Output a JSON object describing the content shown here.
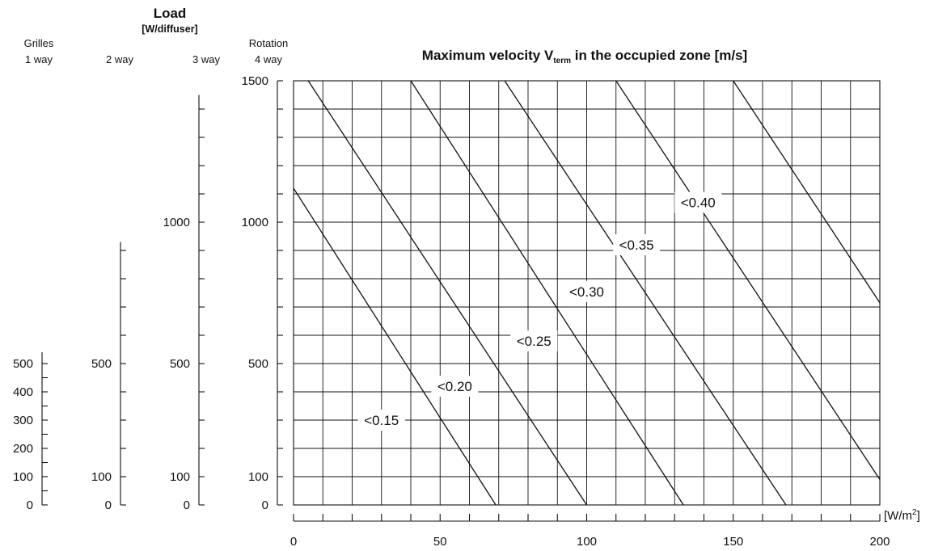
{
  "chart_data": {
    "type": "line",
    "title_prefix": "Maximum velocity V",
    "title_sub": "term",
    "title_suffix": " in the occupied zone [m/s]",
    "load_title": "Load",
    "load_unit": "[W/diffuser]",
    "x_axis": {
      "unit_prefix": "[W/m",
      "unit_sup": "2",
      "unit_suffix": "]",
      "range": [
        0,
        200
      ],
      "ticks": [
        "0",
        "50",
        "100",
        "150",
        "200"
      ],
      "grid_step": 10
    },
    "y_axis": {
      "range": [
        0,
        1500
      ],
      "grid_step": 100
    },
    "load_scales": [
      {
        "header1": "Grilles",
        "header2": "1 way",
        "max": 540,
        "tick_step": 50,
        "labels": [
          "0",
          "100",
          "200",
          "300",
          "400",
          "500"
        ]
      },
      {
        "header1": "",
        "header2": "2 way",
        "max": 930,
        "tick_step": 100,
        "labels": [
          "0",
          "100",
          "500"
        ]
      },
      {
        "header1": "",
        "header2": "3 way",
        "max": 1450,
        "tick_step": 100,
        "labels": [
          "0",
          "100",
          "500",
          "1000"
        ]
      },
      {
        "header1": "Rotation",
        "header2": "4 way",
        "max": 1500,
        "tick_step": 100,
        "labels": [
          "0",
          "100",
          "500",
          "1000",
          "1500"
        ]
      }
    ],
    "series": [
      {
        "name": "<0.15",
        "points": [
          [
            0,
            1120
          ],
          [
            69,
            0
          ]
        ],
        "label_at": [
          30,
          300
        ]
      },
      {
        "name": "<0.20",
        "points": [
          [
            5,
            1500
          ],
          [
            100,
            0
          ]
        ],
        "label_at": [
          55,
          420
        ]
      },
      {
        "name": "<0.25",
        "points": [
          [
            40,
            1500
          ],
          [
            133,
            0
          ]
        ],
        "label_at": [
          82,
          580
        ]
      },
      {
        "name": "<0.30",
        "points": [
          [
            72,
            1500
          ],
          [
            168,
            0
          ]
        ],
        "label_at": [
          100,
          755
        ]
      },
      {
        "name": "<0.35",
        "points": [
          [
            110,
            1500
          ],
          [
            200,
            90
          ]
        ],
        "label_at": [
          117,
          920
        ]
      },
      {
        "name": "<0.40",
        "points": [
          [
            150,
            1500
          ],
          [
            200,
            715
          ]
        ],
        "label_at": [
          138,
          1070
        ]
      }
    ]
  }
}
